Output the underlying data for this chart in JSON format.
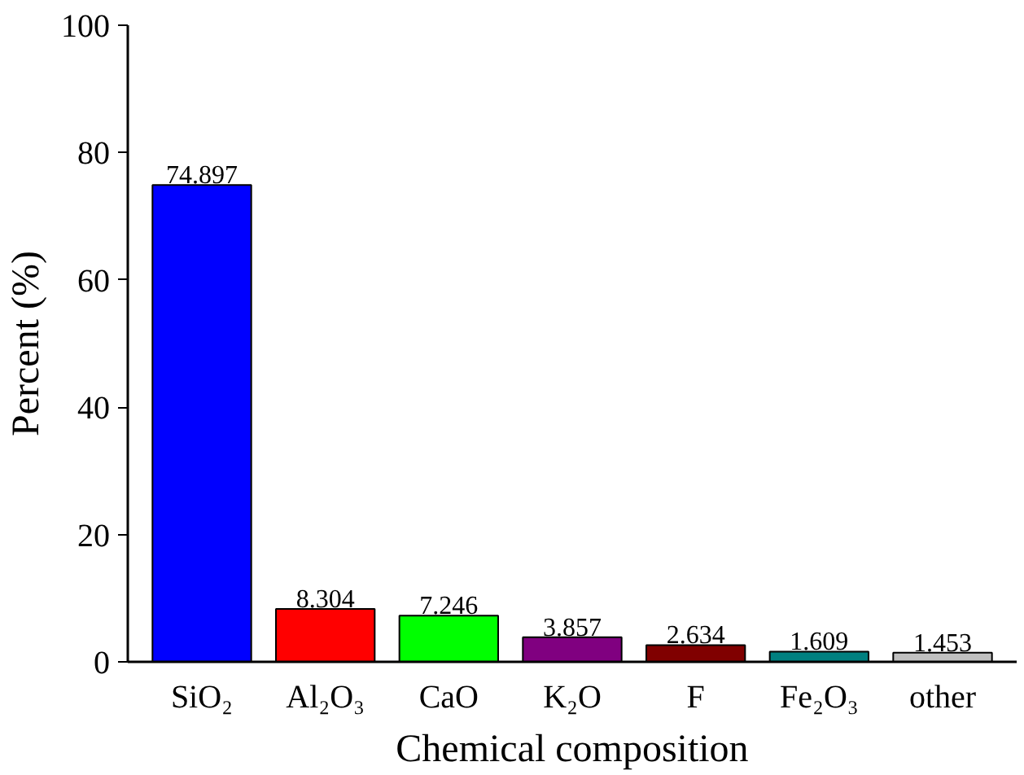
{
  "chart_data": {
    "type": "bar",
    "xlabel": "Chemical composition",
    "ylabel": "Percent (%)",
    "categories": [
      "SiO₂",
      "Al₂O₃",
      "CaO",
      "K₂O",
      "F",
      "Fe₂O₃",
      "other"
    ],
    "values": [
      74.897,
      8.304,
      7.246,
      3.857,
      2.634,
      1.609,
      1.453
    ],
    "colors": [
      "#0000ff",
      "#ff0000",
      "#00ff00",
      "#800080",
      "#800000",
      "#008080",
      "#c0c0c0"
    ],
    "ylim": [
      0,
      100
    ],
    "yticks": [
      0,
      20,
      40,
      60,
      80,
      100
    ],
    "data_labels": true
  }
}
